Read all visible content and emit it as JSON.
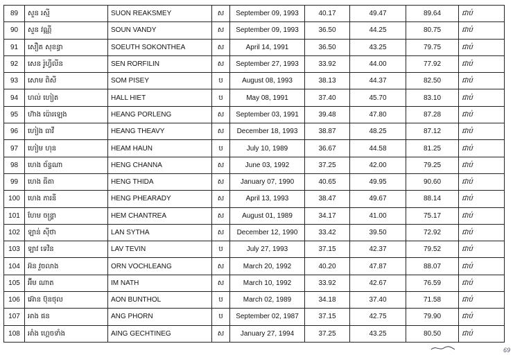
{
  "rows": [
    {
      "no": "89",
      "kh": "សួន រស្មី",
      "en": "SUON REAKSMEY",
      "sex": "ស",
      "dob": "September 09, 1993",
      "s1": "40.17",
      "s2": "49.47",
      "total": "89.64",
      "result": "ជាប់"
    },
    {
      "no": "90",
      "kh": "សួន វណ្ណី",
      "en": "SOUN VANDY",
      "sex": "ស",
      "dob": "September 09, 1993",
      "s1": "36.50",
      "s2": "44.25",
      "total": "80.75",
      "result": "ជាប់"
    },
    {
      "no": "91",
      "kh": "សឿត សុខន្ធា",
      "en": "SOEUTH SOKONTHEA",
      "sex": "ស",
      "dob": "April 14, 1991",
      "s1": "36.50",
      "s2": "43.25",
      "total": "79.75",
      "result": "ជាប់"
    },
    {
      "no": "92",
      "kh": "សេន រ៉ូហ្វីលីន",
      "en": "SEN RORFILIN",
      "sex": "ស",
      "dob": "September 27, 1993",
      "s1": "33.92",
      "s2": "44.00",
      "total": "77.92",
      "result": "ជាប់"
    },
    {
      "no": "93",
      "kh": "សោម ពិសី",
      "en": "SOM PISEY",
      "sex": "ប",
      "dob": "August 08, 1993",
      "s1": "38.13",
      "s2": "44.37",
      "total": "82.50",
      "result": "ជាប់"
    },
    {
      "no": "94",
      "kh": "ហល់ ហៀត",
      "en": "HALL HIET",
      "sex": "ប",
      "dob": "May 08, 1991",
      "s1": "37.40",
      "s2": "45.70",
      "total": "83.10",
      "result": "ជាប់"
    },
    {
      "no": "95",
      "kh": "ហ៊ាង ប៉ោរឡេង",
      "en": "HEANG PORLENG",
      "sex": "ស",
      "dob": "September 03, 1991",
      "s1": "39.48",
      "s2": "47.80",
      "total": "87.28",
      "result": "ជាប់"
    },
    {
      "no": "96",
      "kh": "ហៀង ធាវី",
      "en": "HEANG THEAVY",
      "sex": "ស",
      "dob": "December 18, 1993",
      "s1": "38.87",
      "s2": "48.25",
      "total": "87.12",
      "result": "ជាប់"
    },
    {
      "no": "97",
      "kh": "ហៀម ហុន",
      "en": "HEAM HAUN",
      "sex": "ប",
      "dob": "July 10, 1989",
      "s1": "36.67",
      "s2": "44.58",
      "total": "81.25",
      "result": "ជាប់"
    },
    {
      "no": "98",
      "kh": "ហេង ច័ន្ទណា",
      "en": "HENG CHANNA",
      "sex": "ស",
      "dob": "June 03, 1992",
      "s1": "37.25",
      "s2": "42.00",
      "total": "79.25",
      "result": "ជាប់"
    },
    {
      "no": "99",
      "kh": "ហេង ធីតា",
      "en": "HENG THIDA",
      "sex": "ស",
      "dob": "January 07, 1990",
      "s1": "40.65",
      "s2": "49.95",
      "total": "90.60",
      "result": "ជាប់"
    },
    {
      "no": "100",
      "kh": "ហេង ភារនី",
      "en": "HENG PHEARADY",
      "sex": "ស",
      "dob": "April 13, 1993",
      "s1": "38.47",
      "s2": "49.67",
      "total": "88.14",
      "result": "ជាប់"
    },
    {
      "no": "101",
      "kh": "ហែម ចន្ទ្រា",
      "en": "HEM CHANTREA",
      "sex": "ស",
      "dob": "August 01, 1989",
      "s1": "34.17",
      "s2": "41.00",
      "total": "75.17",
      "result": "ជាប់"
    },
    {
      "no": "102",
      "kh": "ឡាន់ ស៊ីថា",
      "en": "LAN SYTHA",
      "sex": "ស",
      "dob": "December 12, 1990",
      "s1": "33.42",
      "s2": "39.50",
      "total": "72.92",
      "result": "ជាប់"
    },
    {
      "no": "103",
      "kh": "ឡាវ ទេវិន",
      "en": "LAV TEVIN",
      "sex": "ប",
      "dob": "July 27, 1993",
      "s1": "37.15",
      "s2": "42.37",
      "total": "79.52",
      "result": "ជាប់"
    },
    {
      "no": "104",
      "kh": "អ៊ន វួចលាង",
      "en": "ORN VOCHLEANG",
      "sex": "ស",
      "dob": "March 20, 1992",
      "s1": "40.20",
      "s2": "47.87",
      "total": "88.07",
      "result": "ជាប់"
    },
    {
      "no": "105",
      "kh": "អ៊ីម ណាត",
      "en": "IM NATH",
      "sex": "ស",
      "dob": "March 10, 1992",
      "s1": "33.92",
      "s2": "42.67",
      "total": "76.59",
      "result": "ជាប់"
    },
    {
      "no": "106",
      "kh": "អ៊ោន ប៊ុនថុល",
      "en": "AON BUNTHOL",
      "sex": "ប",
      "dob": "March 02, 1989",
      "s1": "34.18",
      "s2": "37.40",
      "total": "71.58",
      "result": "ជាប់"
    },
    {
      "no": "107",
      "kh": "អាង ផន",
      "en": "ANG PHORN",
      "sex": "ប",
      "dob": "September 02, 1987",
      "s1": "37.15",
      "s2": "42.75",
      "total": "79.90",
      "result": "ជាប់"
    },
    {
      "no": "108",
      "kh": "អាំង ហ្គេចទាំង",
      "en": "AING GECHTINEG",
      "sex": "ស",
      "dob": "January 27, 1994",
      "s1": "37.25",
      "s2": "43.25",
      "total": "80.50",
      "result": "ជាប់"
    }
  ],
  "corner_mark": "69"
}
